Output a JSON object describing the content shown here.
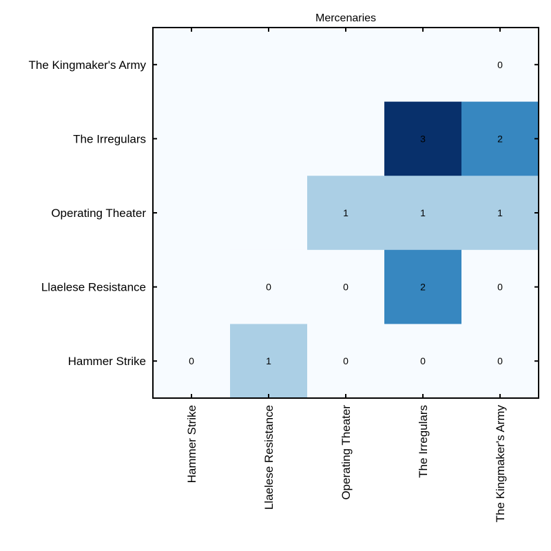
{
  "chart_data": {
    "type": "heatmap",
    "title": "Mercenaries",
    "x_categories": [
      "Hammer Strike",
      "Llaelese Resistance",
      "Operating Theater",
      "The Irregulars",
      "The Kingmaker's Army"
    ],
    "y_categories": [
      "The Kingmaker's Army",
      "The Irregulars",
      "Operating Theater",
      "Llaelese Resistance",
      "Hammer Strike"
    ],
    "values": [
      [
        null,
        null,
        null,
        null,
        0
      ],
      [
        null,
        null,
        null,
        3,
        2
      ],
      [
        null,
        null,
        1,
        1,
        1
      ],
      [
        null,
        0,
        0,
        2,
        0
      ],
      [
        0,
        1,
        0,
        0,
        0
      ]
    ],
    "colormap": {
      "0": "#f7fbff",
      "1": "#abcfe5",
      "2": "#3787c0",
      "3": "#08306b",
      "empty": "#f7fbff"
    },
    "label_colors": {
      "dark_text": "#000000",
      "light_text": "#ffffff"
    },
    "grid": false,
    "legend": "none"
  }
}
